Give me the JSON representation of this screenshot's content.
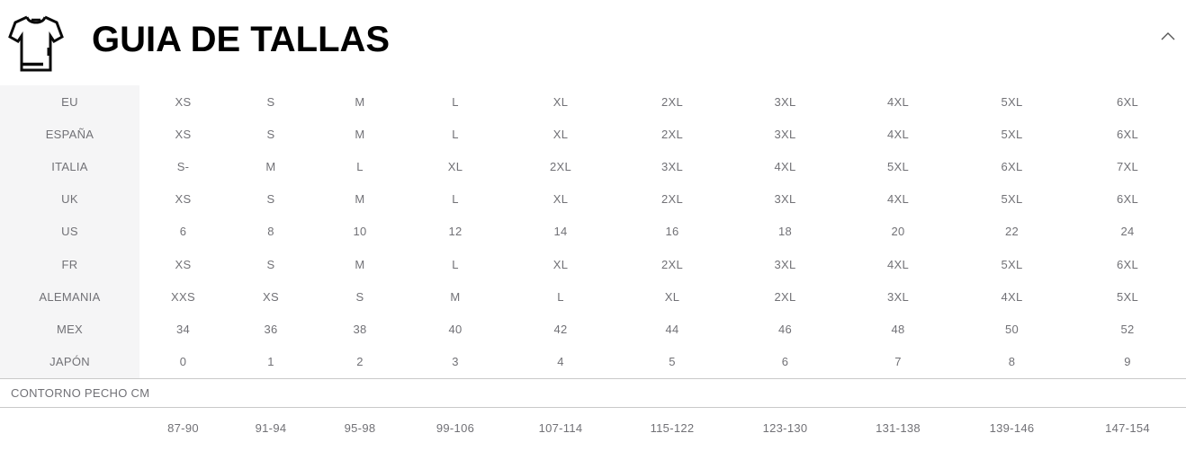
{
  "header": {
    "title": "GUIA DE TALLAS",
    "icon": "tshirt-icon",
    "collapse_icon": "chevron-up-icon"
  },
  "table": {
    "rows": [
      {
        "label": "EU",
        "values": [
          "XS",
          "S",
          "M",
          "L",
          "XL",
          "2XL",
          "3XL",
          "4XL",
          "5XL",
          "6XL"
        ]
      },
      {
        "label": "ESPAÑA",
        "values": [
          "XS",
          "S",
          "M",
          "L",
          "XL",
          "2XL",
          "3XL",
          "4XL",
          "5XL",
          "6XL"
        ]
      },
      {
        "label": "ITALIA",
        "values": [
          "S-",
          "M",
          "L",
          "XL",
          "2XL",
          "3XL",
          "4XL",
          "5XL",
          "6XL",
          "7XL"
        ]
      },
      {
        "label": "UK",
        "values": [
          "XS",
          "S",
          "M",
          "L",
          "XL",
          "2XL",
          "3XL",
          "4XL",
          "5XL",
          "6XL"
        ]
      },
      {
        "label": "US",
        "values": [
          "6",
          "8",
          "10",
          "12",
          "14",
          "16",
          "18",
          "20",
          "22",
          "24"
        ]
      },
      {
        "label": "FR",
        "values": [
          "XS",
          "S",
          "M",
          "L",
          "XL",
          "2XL",
          "3XL",
          "4XL",
          "5XL",
          "6XL"
        ]
      },
      {
        "label": "ALEMANIA",
        "values": [
          "XXS",
          "XS",
          "S",
          "M",
          "L",
          "XL",
          "2XL",
          "3XL",
          "4XL",
          "5XL"
        ]
      },
      {
        "label": "MEX",
        "values": [
          "34",
          "36",
          "38",
          "40",
          "42",
          "44",
          "46",
          "48",
          "50",
          "52"
        ]
      },
      {
        "label": "JAPÓN",
        "values": [
          "0",
          "1",
          "2",
          "3",
          "4",
          "5",
          "6",
          "7",
          "8",
          "9"
        ]
      }
    ],
    "measure_label": "CONTORNO PECHO CM",
    "measure_ranges": [
      "87-90",
      "91-94",
      "95-98",
      "99-106",
      "107-114",
      "115-122",
      "123-130",
      "131-138",
      "139-146",
      "147-154"
    ]
  },
  "colors": {
    "title": "#000000",
    "cell_text": "#717176",
    "label_column_bg": "#f5f5f6",
    "divider": "#c9c9c9"
  }
}
